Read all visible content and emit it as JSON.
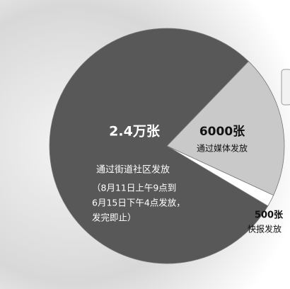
{
  "chart_data": {
    "type": "pie",
    "categories": [
      "通过街道社区发放",
      "通过媒体发放",
      "快报发放"
    ],
    "values": [
      24000,
      6000,
      500
    ],
    "value_labels": [
      "2.4万张",
      "6000张",
      "500张"
    ],
    "colors": [
      "#585858",
      "#c9c9c9",
      "#ffffff"
    ],
    "note": [
      "（8月11日上午9点到",
      "6月15日下午4点发放，",
      "发完即止）"
    ]
  }
}
